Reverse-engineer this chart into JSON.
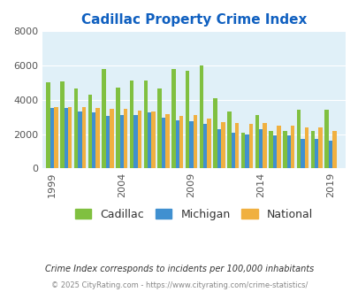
{
  "title": "Cadillac Property Crime Index",
  "plot_years": [
    1999,
    2000,
    2001,
    2002,
    2003,
    2004,
    2005,
    2006,
    2007,
    2008,
    2009,
    2010,
    2011,
    2012,
    2013,
    2014,
    2015,
    2016,
    2017,
    2018,
    2019
  ],
  "cadillac_vals": [
    5000,
    5050,
    4650,
    4300,
    5800,
    4700,
    5100,
    5150,
    4650,
    5800,
    5700,
    6000,
    4100,
    3300,
    2100,
    3100,
    2200,
    2200,
    3400,
    2200,
    3400
  ],
  "michigan_vals": [
    3550,
    3550,
    3300,
    3250,
    3050,
    3100,
    3100,
    3250,
    2950,
    2800,
    2750,
    2600,
    2300,
    2100,
    1950,
    2300,
    1900,
    1900,
    1700,
    1700,
    1600
  ],
  "national_vals": [
    3600,
    3600,
    3600,
    3500,
    3450,
    3450,
    3350,
    3300,
    3150,
    3050,
    3100,
    2900,
    2700,
    2650,
    2600,
    2650,
    2500,
    2500,
    2400,
    2400,
    2200
  ],
  "color_cadillac": "#80c040",
  "color_michigan": "#4090d0",
  "color_national": "#f0b040",
  "background_color": "#e0f0f8",
  "title_color": "#1060c0",
  "xtick_labels": [
    "1999",
    "2004",
    "2009",
    "2014",
    "2019"
  ],
  "xtick_positions": [
    1999,
    2004,
    2009,
    2014,
    2019
  ],
  "ylim": [
    0,
    8000
  ],
  "yticks": [
    0,
    2000,
    4000,
    6000,
    8000
  ],
  "footnote1": "Crime Index corresponds to incidents per 100,000 inhabitants",
  "footnote2": "© 2025 CityRating.com - https://www.cityrating.com/crime-statistics/",
  "bar_width": 0.28,
  "legend_labels": [
    "Cadillac",
    "Michigan",
    "National"
  ]
}
